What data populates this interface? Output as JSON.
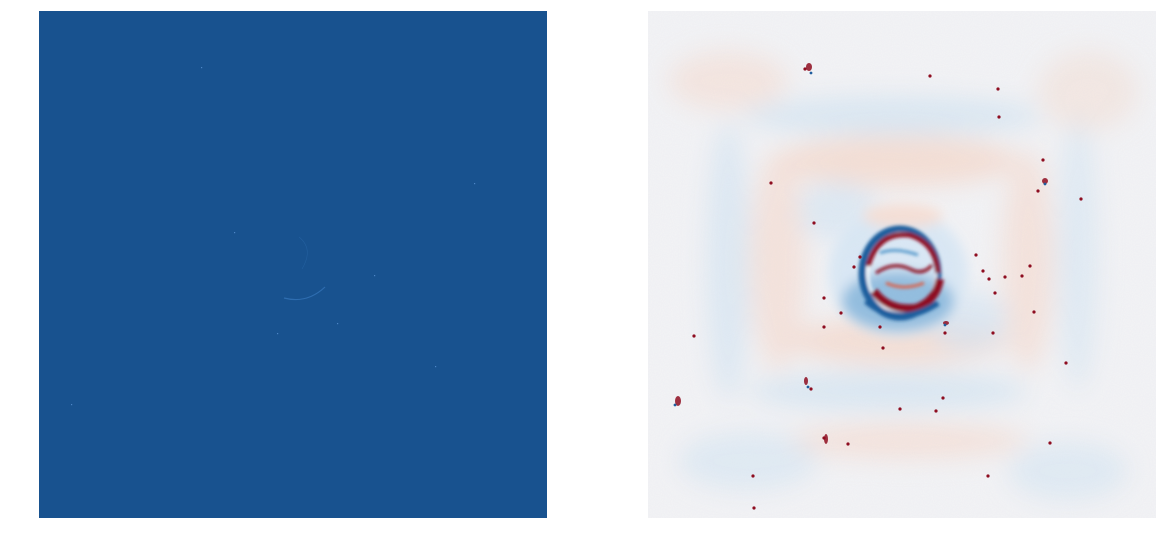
{
  "panels": [
    {
      "id": "left",
      "description_kind": "uniform blue intensity map with a faint arc near center",
      "colors": {
        "background": "#18528f",
        "feature": "#2e6db0",
        "speck": "#4d86c6"
      }
    },
    {
      "id": "right",
      "description_kind": "diverging red-blue residual map with a central ring structure",
      "colors": {
        "background": "#f4f4f6",
        "light_blue": "#d6e6f3",
        "light_red": "#f6ddd2",
        "mid_blue": "#5b9ccd",
        "deep_blue": "#1f5e9e",
        "mid_red": "#d8654f",
        "deep_red": "#8e0d20",
        "white": "#ffffff"
      }
    }
  ]
}
